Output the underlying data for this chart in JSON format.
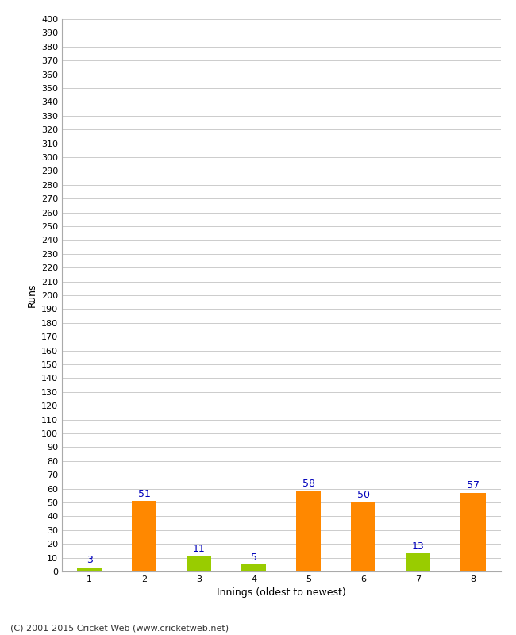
{
  "innings": [
    1,
    2,
    3,
    4,
    5,
    6,
    7,
    8
  ],
  "values": [
    3,
    51,
    11,
    5,
    58,
    50,
    13,
    57
  ],
  "bar_colors": [
    "#99cc00",
    "#ff8800",
    "#99cc00",
    "#99cc00",
    "#ff8800",
    "#ff8800",
    "#99cc00",
    "#ff8800"
  ],
  "xlabel": "Innings (oldest to newest)",
  "ylabel": "Runs",
  "ylim": [
    0,
    400
  ],
  "ytick_step": 10,
  "footer": "(C) 2001-2015 Cricket Web (www.cricketweb.net)",
  "bg_color": "#ffffff",
  "grid_color": "#cccccc",
  "label_color": "#0000bb",
  "bar_width": 0.45,
  "tick_fontsize": 8,
  "label_fontsize": 9,
  "footer_fontsize": 8
}
